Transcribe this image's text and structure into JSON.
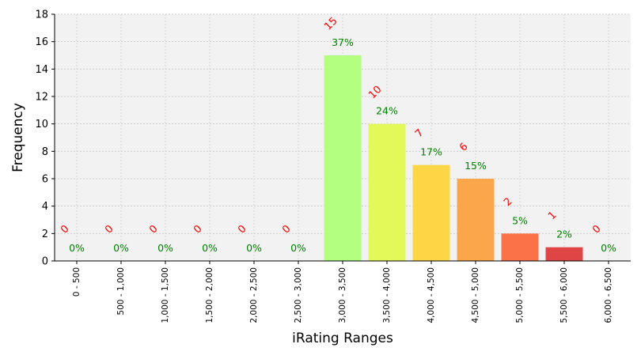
{
  "chart_data": {
    "type": "bar",
    "xlabel": "iRating Ranges",
    "ylabel": "Frequency",
    "ylim": [
      0,
      18
    ],
    "yticks": [
      0,
      2,
      4,
      6,
      8,
      10,
      12,
      14,
      16,
      18
    ],
    "grid": true,
    "categories": [
      "0 - 500",
      "500 - 1,000",
      "1,000 - 1,500",
      "1,500 - 2,000",
      "2,000 - 2,500",
      "2,500 - 3,000",
      "3,000 - 3,500",
      "3,500 - 4,000",
      "4,000 - 4,500",
      "4,500 - 5,000",
      "5,000 - 5,500",
      "5,500 - 6,000",
      "6,000 - 6,500"
    ],
    "values": [
      0,
      0,
      0,
      0,
      0,
      0,
      15,
      10,
      7,
      6,
      2,
      1,
      0
    ],
    "percent_labels": [
      "0%",
      "0%",
      "0%",
      "0%",
      "0%",
      "0%",
      "37%",
      "24%",
      "17%",
      "15%",
      "5%",
      "2%",
      "0%"
    ],
    "bar_colors": [
      "#b3ff80",
      "#b3ff80",
      "#b3ff80",
      "#b3ff80",
      "#b3ff80",
      "#b3ff80",
      "#b3ff80",
      "#e2f957",
      "#fcd645",
      "#fca64b",
      "#fc7248",
      "#e04545",
      "#e04545"
    ],
    "count_label_color": "#ff0000",
    "percent_label_color": "#008000",
    "plot_background": "#f2f2f2"
  }
}
